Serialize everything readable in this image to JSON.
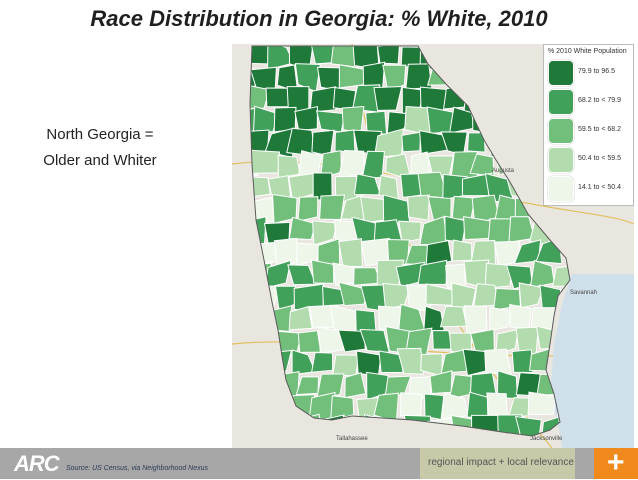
{
  "title": "Race Distribution in Georgia: % White, 2010",
  "side_text": [
    "North Georgia =",
    "Older and Whiter"
  ],
  "legend": {
    "title": "% 2010 White Population",
    "items": [
      {
        "label": "79.9 to 96.5",
        "color": "#1f7a3a"
      },
      {
        "label": "68.2 to < 79.9",
        "color": "#41a05a"
      },
      {
        "label": "59.5 to < 68.2",
        "color": "#72bf7b"
      },
      {
        "label": "50.4 to < 59.5",
        "color": "#b2dcae"
      },
      {
        "label": "14.1 to < 50.4",
        "color": "#eef6ea"
      }
    ]
  },
  "map_labels": {
    "augusta": "Augusta",
    "savannah": "Savannah",
    "jacksonville": "Jacksonville",
    "tallahassee": "Tallahassee"
  },
  "footer": {
    "logo": "ARC",
    "source": "Source: US Census, via Neighborhood Nexus",
    "tagline": "regional impact + local relevance",
    "plus": "+"
  }
}
